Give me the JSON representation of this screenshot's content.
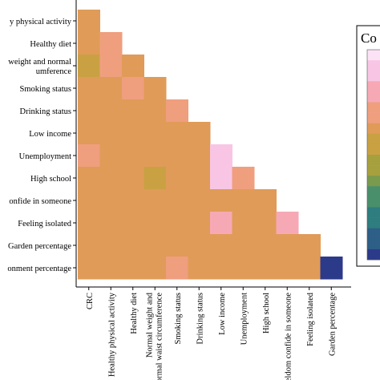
{
  "chart_data": {
    "type": "heatmap",
    "layout": "lower-triangle",
    "rows": [
      "y physical activity",
      "Healthy diet",
      "weight and normal",
      "Smoking status",
      "Drinking status",
      "Low income",
      "Unemployment",
      "High school",
      "onfide in someone",
      "Feeling isolated",
      "Garden percentage",
      "onment percentage"
    ],
    "row_label_continuation": {
      "row": 2,
      "text": "umference"
    },
    "columns": [
      "CRC",
      "Healthy physical activity",
      "Healthy diet",
      "Normal weight and normal waist circumference",
      "Smoking status",
      "Drinking status",
      "Low income",
      "Unemployment",
      "High school",
      "Seldom confide in someone",
      "Feeling isolated",
      "Garden percentage"
    ],
    "values": [
      [
        0.3
      ],
      [
        0.3,
        0.45
      ],
      [
        0.15,
        0.45,
        0.3
      ],
      [
        0.3,
        0.3,
        0.45,
        0.3
      ],
      [
        0.3,
        0.3,
        0.3,
        0.3,
        0.45
      ],
      [
        0.3,
        0.2,
        0.3,
        0.2,
        0.2,
        0.2
      ],
      [
        0.45,
        0.2,
        0.3,
        0.2,
        0.3,
        0.3,
        0.75
      ],
      [
        0.3,
        0.2,
        0.2,
        0.1,
        0.2,
        0.2,
        0.75,
        0.45
      ],
      [
        0.3,
        0.2,
        0.3,
        0.3,
        0.2,
        0.2,
        0.3,
        0.3,
        0.3
      ],
      [
        0.3,
        0.3,
        0.3,
        0.3,
        0.2,
        0.2,
        0.55,
        0.3,
        0.3,
        0.65
      ],
      [
        0.3,
        0.3,
        0.3,
        0.3,
        0.3,
        0.3,
        0.3,
        0.3,
        0.3,
        0.3,
        0.3
      ],
      [
        0.3,
        0.3,
        0.3,
        0.3,
        0.45,
        0.3,
        0.2,
        0.3,
        0.3,
        0.3,
        0.2,
        -0.95
      ]
    ],
    "legend": {
      "title": "Co",
      "placement": "right",
      "range": [
        -1,
        1
      ]
    },
    "colors": {
      "scale": [
        "#2c3a8a",
        "#2e5f86",
        "#2f7d7e",
        "#4a8f6c",
        "#7a9a4e",
        "#a7a03e",
        "#c9a143",
        "#e09b58",
        "#ef9f7e",
        "#f6a9b5",
        "#f8c6e4",
        "#fbe3f5"
      ]
    }
  }
}
